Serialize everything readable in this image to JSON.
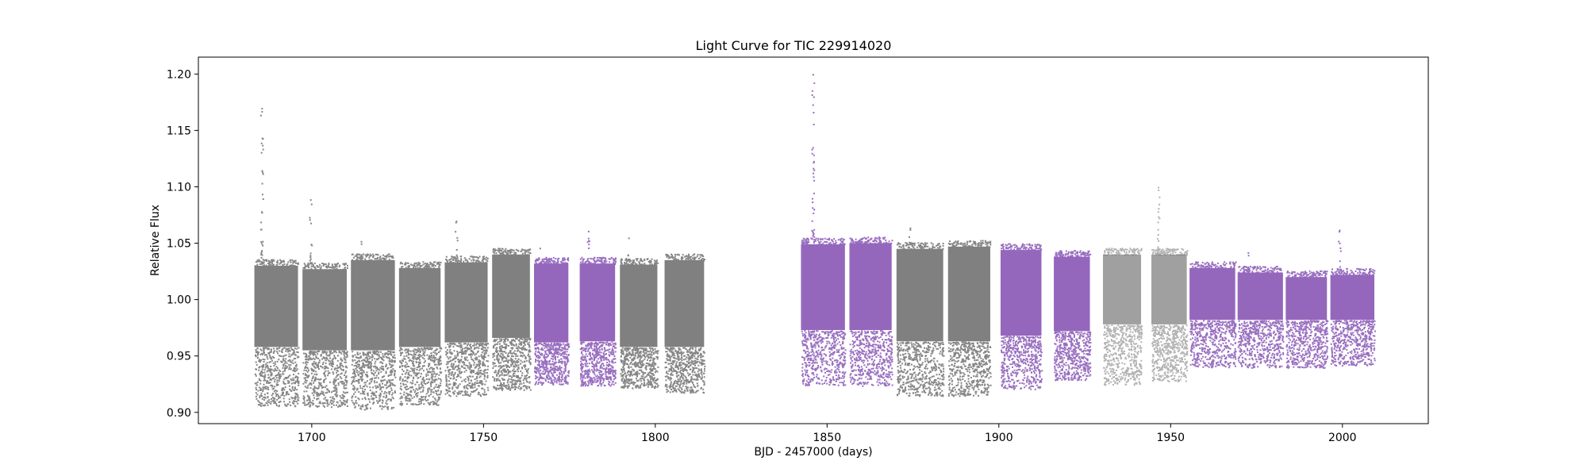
{
  "chart_data": {
    "type": "scatter",
    "title": "Light Curve for TIC 229914020",
    "xlabel": "BJD - 2457000 (days)",
    "ylabel": "Relative Flux",
    "xlim": [
      1667,
      2025
    ],
    "ylim": [
      0.89,
      1.215
    ],
    "xticks": [
      1700,
      1750,
      1800,
      1850,
      1900,
      1950,
      2000
    ],
    "xtick_labels": [
      "1700",
      "1750",
      "1800",
      "1850",
      "1900",
      "1950",
      "2000"
    ],
    "yticks": [
      0.9,
      0.95,
      1.0,
      1.05,
      1.1,
      1.15,
      1.2
    ],
    "ytick_labels": [
      "0.90",
      "0.95",
      "1.00",
      "1.05",
      "1.10",
      "1.15",
      "1.20"
    ],
    "grid": false,
    "colors": {
      "gray": "#808080",
      "purple": "#9467bd"
    },
    "segments": [
      {
        "x_start": 1683.3,
        "x_end": 1696.0,
        "color": "gray",
        "core_low": 0.958,
        "core_high": 1.03,
        "tail_low": 0.906,
        "max": 1.17
      },
      {
        "x_start": 1697.3,
        "x_end": 1710.2,
        "color": "gray",
        "core_low": 0.955,
        "core_high": 1.027,
        "tail_low": 0.905,
        "max": 1.089
      },
      {
        "x_start": 1711.4,
        "x_end": 1724.2,
        "color": "gray",
        "core_low": 0.955,
        "core_high": 1.035,
        "tail_low": 0.903,
        "max": 1.052
      },
      {
        "x_start": 1725.4,
        "x_end": 1737.5,
        "color": "gray",
        "core_low": 0.958,
        "core_high": 1.028,
        "tail_low": 0.907,
        "max": 1.033
      },
      {
        "x_start": 1738.7,
        "x_end": 1751.2,
        "color": "gray",
        "core_low": 0.962,
        "core_high": 1.033,
        "tail_low": 0.915,
        "max": 1.07
      },
      {
        "x_start": 1752.5,
        "x_end": 1763.5,
        "color": "gray",
        "core_low": 0.966,
        "core_high": 1.04,
        "tail_low": 0.92,
        "max": 1.046
      },
      {
        "x_start": 1764.7,
        "x_end": 1774.7,
        "color": "purple",
        "core_low": 0.962,
        "core_high": 1.032,
        "tail_low": 0.925,
        "max": 1.046
      },
      {
        "x_start": 1778.0,
        "x_end": 1788.3,
        "color": "purple",
        "core_low": 0.963,
        "core_high": 1.032,
        "tail_low": 0.924,
        "max": 1.061
      },
      {
        "x_start": 1789.7,
        "x_end": 1800.6,
        "color": "gray",
        "core_low": 0.958,
        "core_high": 1.031,
        "tail_low": 0.922,
        "max": 1.055
      },
      {
        "x_start": 1802.7,
        "x_end": 1814.2,
        "color": "gray",
        "core_low": 0.958,
        "core_high": 1.035,
        "tail_low": 0.918,
        "max": 1.037
      },
      {
        "x_start": 1842.4,
        "x_end": 1855.2,
        "color": "purple",
        "core_low": 0.973,
        "core_high": 1.049,
        "tail_low": 0.924,
        "max": 1.2
      },
      {
        "x_start": 1856.5,
        "x_end": 1868.8,
        "color": "purple",
        "core_low": 0.973,
        "core_high": 1.05,
        "tail_low": 0.924,
        "max": 1.056
      },
      {
        "x_start": 1870.2,
        "x_end": 1883.8,
        "color": "gray",
        "core_low": 0.963,
        "core_high": 1.045,
        "tail_low": 0.915,
        "max": 1.064
      },
      {
        "x_start": 1885.2,
        "x_end": 1897.5,
        "color": "gray",
        "core_low": 0.963,
        "core_high": 1.047,
        "tail_low": 0.915,
        "max": 1.054
      },
      {
        "x_start": 1900.5,
        "x_end": 1912.4,
        "color": "purple",
        "core_low": 0.968,
        "core_high": 1.044,
        "tail_low": 0.921,
        "max": 1.047
      },
      {
        "x_start": 1916.0,
        "x_end": 1926.5,
        "color": "purple",
        "core_low": 0.972,
        "core_high": 1.038,
        "tail_low": 0.929,
        "max": 1.04
      },
      {
        "x_start": 1930.3,
        "x_end": 1941.4,
        "color": "gray",
        "core_low": 0.978,
        "core_high": 1.04,
        "tail_low": 0.925,
        "max": 1.043,
        "light": true
      },
      {
        "x_start": 1944.4,
        "x_end": 1954.7,
        "color": "gray",
        "core_low": 0.978,
        "core_high": 1.04,
        "tail_low": 0.928,
        "max": 1.1,
        "light": true
      },
      {
        "x_start": 1955.5,
        "x_end": 1968.8,
        "color": "purple",
        "core_low": 0.982,
        "core_high": 1.028,
        "tail_low": 0.94,
        "max": 1.032
      },
      {
        "x_start": 1969.5,
        "x_end": 1982.7,
        "color": "purple",
        "core_low": 0.982,
        "core_high": 1.024,
        "tail_low": 0.94,
        "max": 1.042
      },
      {
        "x_start": 1983.5,
        "x_end": 1995.5,
        "color": "purple",
        "core_low": 0.982,
        "core_high": 1.02,
        "tail_low": 0.94,
        "max": 1.027
      },
      {
        "x_start": 1996.5,
        "x_end": 2009.3,
        "color": "purple",
        "core_low": 0.982,
        "core_high": 1.022,
        "tail_low": 0.942,
        "max": 1.062
      }
    ]
  }
}
